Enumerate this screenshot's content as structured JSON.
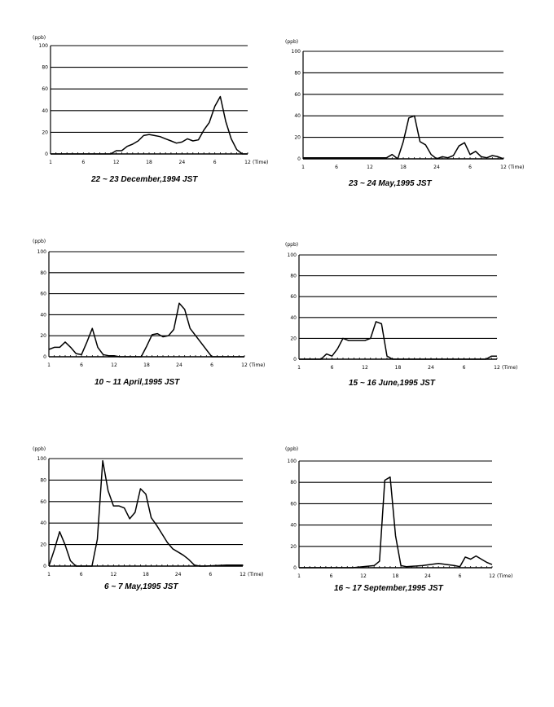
{
  "chart_data": [
    {
      "type": "line",
      "caption": "22 ~ 23 December,1994 JST",
      "unit_label": "(ppb)",
      "xlabel": "(Time)",
      "ylim": [
        0,
        100
      ],
      "yticks": [
        "0",
        "20",
        "40",
        "60",
        "80",
        "100"
      ],
      "xticks": [
        "1",
        "6",
        "12",
        "18",
        "24",
        "6",
        "12"
      ],
      "grid": true,
      "series": [
        {
          "x": [
            0,
            6,
            11,
            12,
            13,
            14,
            15,
            16,
            17,
            18,
            19,
            20,
            21,
            22,
            23,
            24,
            25,
            26,
            27,
            28,
            29,
            30,
            31,
            32,
            33,
            34,
            35,
            36
          ],
          "y": [
            0,
            0,
            0,
            3,
            3,
            7,
            9,
            12,
            17,
            18,
            17,
            16,
            14,
            12,
            10,
            11,
            14,
            12,
            13,
            22,
            29,
            44,
            53,
            30,
            14,
            4,
            0,
            0
          ]
        }
      ]
    },
    {
      "type": "line",
      "caption": "23 ~ 24 May,1995 JST",
      "unit_label": "(ppb)",
      "xlabel": "(Time)",
      "ylim": [
        0,
        100
      ],
      "yticks": [
        "0",
        "20",
        "40",
        "60",
        "80",
        "100"
      ],
      "xticks": [
        "1",
        "6",
        "12",
        "18",
        "24",
        "6",
        "12"
      ],
      "grid": true,
      "series": [
        {
          "x": [
            0,
            6,
            11,
            15,
            16,
            17,
            18,
            19,
            20,
            21,
            22,
            23,
            24,
            25,
            26,
            27,
            28,
            29,
            30,
            31,
            32,
            33,
            34,
            35,
            36
          ],
          "y": [
            1,
            1,
            1,
            1,
            4,
            0,
            16,
            38,
            40,
            16,
            13,
            4,
            0,
            2,
            1,
            3,
            12,
            15,
            4,
            7,
            2,
            1,
            3,
            2,
            0
          ]
        }
      ]
    },
    {
      "type": "line",
      "caption": "10 ~ 11 April,1995 JST",
      "unit_label": "(ppb)",
      "xlabel": "(Time)",
      "ylim": [
        0,
        100
      ],
      "yticks": [
        "0",
        "20",
        "40",
        "60",
        "80",
        "100"
      ],
      "xticks": [
        "1",
        "6",
        "12",
        "18",
        "24",
        "6",
        "12"
      ],
      "grid": true,
      "series": [
        {
          "x": [
            0,
            1,
            2,
            3,
            4,
            5,
            6,
            7,
            8,
            9,
            10,
            11,
            12,
            13,
            16,
            17,
            18,
            19,
            20,
            21,
            22,
            23,
            24,
            25,
            26,
            30,
            36
          ],
          "y": [
            7,
            9,
            9,
            14,
            9,
            3,
            2,
            14,
            27,
            9,
            2,
            1,
            1,
            0,
            0,
            0,
            10,
            21,
            22,
            19,
            20,
            26,
            51,
            45,
            27,
            0,
            0
          ]
        }
      ]
    },
    {
      "type": "line",
      "caption": "15 ~ 16 June,1995 JST",
      "unit_label": "(ppb)",
      "xlabel": "(Time)",
      "ylim": [
        0,
        100
      ],
      "yticks": [
        "0",
        "20",
        "40",
        "60",
        "80",
        "100"
      ],
      "xticks": [
        "1",
        "6",
        "12",
        "18",
        "24",
        "6",
        "12"
      ],
      "grid": true,
      "series": [
        {
          "x": [
            0,
            4,
            5,
            6,
            7,
            8,
            9,
            10,
            11,
            12,
            13,
            14,
            15,
            16,
            17,
            24,
            30,
            34,
            35,
            36
          ],
          "y": [
            0,
            0,
            5,
            3,
            10,
            20,
            18,
            18,
            18,
            18,
            20,
            36,
            34,
            3,
            0,
            0,
            0,
            0,
            3,
            3
          ]
        }
      ]
    },
    {
      "type": "line",
      "caption": "6 ~ 7 May,1995 JST",
      "unit_label": "(ppb)",
      "xlabel": "(Time)",
      "ylim": [
        0,
        100
      ],
      "yticks": [
        "0",
        "20",
        "40",
        "60",
        "80",
        "100"
      ],
      "xticks": [
        "1",
        "6",
        "12",
        "18",
        "24",
        "6",
        "12"
      ],
      "grid": true,
      "series": [
        {
          "x": [
            0,
            1,
            2,
            3,
            4,
            5,
            8,
            9,
            10,
            11,
            12,
            13,
            14,
            15,
            16,
            17,
            18,
            19,
            20,
            21,
            22,
            23,
            24,
            25,
            26,
            27,
            28,
            29,
            33,
            36
          ],
          "y": [
            0,
            15,
            32,
            20,
            5,
            0,
            0,
            25,
            98,
            70,
            56,
            56,
            54,
            44,
            50,
            72,
            67,
            45,
            38,
            30,
            22,
            16,
            13,
            10,
            6,
            1,
            0,
            0,
            1,
            1
          ]
        }
      ]
    },
    {
      "type": "line",
      "caption": "16 ~ 17 September,1995 JST",
      "unit_label": "(ppb)",
      "xlabel": "(Time)",
      "ylim": [
        0,
        100
      ],
      "yticks": [
        "0",
        "20",
        "40",
        "60",
        "80",
        "100"
      ],
      "xticks": [
        "1",
        "6",
        "12",
        "18",
        "24",
        "6",
        "12"
      ],
      "grid": true,
      "series": [
        {
          "x": [
            0,
            10,
            14,
            15,
            16,
            17,
            18,
            19,
            20,
            23,
            26,
            29,
            30,
            31,
            32,
            33,
            34,
            35,
            36
          ],
          "y": [
            0,
            0,
            2,
            6,
            82,
            85,
            30,
            2,
            1,
            2,
            4,
            2,
            1,
            10,
            8,
            11,
            8,
            5,
            3
          ]
        }
      ]
    }
  ]
}
